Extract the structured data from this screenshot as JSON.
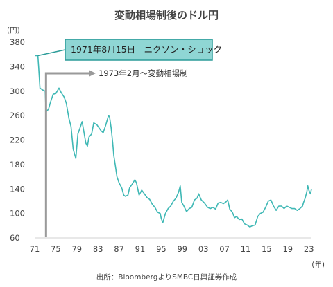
{
  "chart_data": {
    "type": "line",
    "title": "変動相場制後のドル円",
    "y_unit": "(円)",
    "x_unit": "(年)",
    "source": "出所：BloombergよりSMBC日興証券作成",
    "ylim": [
      60,
      380
    ],
    "xlim": [
      1971,
      2023.5
    ],
    "y_ticks": [
      60,
      100,
      140,
      180,
      220,
      260,
      300,
      340,
      380
    ],
    "x_tick_values": [
      1971,
      1975,
      1979,
      1983,
      1987,
      1991,
      1995,
      1999,
      2003,
      2007,
      2011,
      2015,
      2019,
      2023
    ],
    "x_tick_labels": [
      "71",
      "75",
      "79",
      "83",
      "87",
      "91",
      "95",
      "99",
      "03",
      "07",
      "11",
      "15",
      "19",
      "23"
    ],
    "grid": false,
    "line_color": "#3fb8b5",
    "series": [
      {
        "x": [
          1971.0,
          1971.6,
          1971.75,
          1972.0,
          1972.5,
          1973.0,
          1973.15,
          1973.3,
          1973.6,
          1974.0,
          1974.5,
          1975.0,
          1975.6,
          1976.0,
          1976.6,
          1977.0,
          1977.5,
          1977.9,
          1978.3,
          1978.8,
          1979.2,
          1979.6,
          1980.0,
          1980.3,
          1980.7,
          1981.0,
          1981.3,
          1981.8,
          1982.2,
          1982.8,
          1983.2,
          1983.6,
          1984.0,
          1984.5,
          1985.0,
          1985.2,
          1985.5,
          1985.8,
          1986.0,
          1986.3,
          1986.6,
          1987.0,
          1987.5,
          1987.9,
          1988.2,
          1988.7,
          1989.0,
          1989.5,
          1990.0,
          1990.3,
          1990.8,
          1991.3,
          1991.8,
          1992.3,
          1992.8,
          1993.3,
          1993.8,
          1994.3,
          1994.8,
          1995.0,
          1995.3,
          1995.8,
          1996.3,
          1996.8,
          1997.3,
          1997.8,
          1998.3,
          1998.6,
          1998.9,
          1999.3,
          1999.8,
          2000.3,
          2000.8,
          2001.3,
          2001.8,
          2002.1,
          2002.6,
          2003.2,
          2003.8,
          2004.3,
          2004.8,
          2005.3,
          2005.8,
          2006.3,
          2006.8,
          2007.3,
          2007.6,
          2008.0,
          2008.5,
          2008.9,
          2009.3,
          2009.8,
          2010.3,
          2010.8,
          2011.3,
          2011.8,
          2012.3,
          2012.8,
          2013.3,
          2013.8,
          2014.3,
          2014.8,
          2015.3,
          2015.8,
          2016.3,
          2016.8,
          2017.3,
          2017.8,
          2018.3,
          2018.8,
          2019.3,
          2019.8,
          2020.3,
          2020.8,
          2021.3,
          2021.8,
          2022.0,
          2022.3,
          2022.6,
          2022.8,
          2023.0,
          2023.3,
          2023.5
        ],
        "y": [
          358,
          358,
          340,
          305,
          302,
          300,
          265,
          268,
          270,
          282,
          295,
          296,
          305,
          298,
          290,
          280,
          255,
          242,
          205,
          190,
          230,
          240,
          250,
          235,
          215,
          210,
          225,
          230,
          248,
          245,
          240,
          235,
          232,
          245,
          260,
          258,
          240,
          215,
          195,
          178,
          160,
          150,
          142,
          130,
          128,
          130,
          142,
          148,
          155,
          150,
          130,
          138,
          132,
          126,
          123,
          115,
          110,
          102,
          100,
          92,
          85,
          100,
          108,
          112,
          120,
          125,
          135,
          145,
          118,
          112,
          103,
          108,
          110,
          122,
          125,
          132,
          122,
          117,
          110,
          108,
          110,
          107,
          117,
          118,
          116,
          119,
          122,
          107,
          102,
          93,
          95,
          90,
          91,
          83,
          81,
          78,
          80,
          81,
          95,
          100,
          102,
          110,
          120,
          122,
          112,
          105,
          112,
          112,
          108,
          112,
          110,
          108,
          108,
          105,
          108,
          112,
          118,
          125,
          135,
          145,
          138,
          132,
          140
        ]
      }
    ],
    "annotations": [
      {
        "label": "1971年8月15日　ニクソン・ショック",
        "x": 1971.6,
        "y": 358,
        "style": "callout"
      },
      {
        "label": "1973年2月～変動相場制",
        "x": 1973.15,
        "y": 62,
        "style": "arrow"
      }
    ]
  }
}
